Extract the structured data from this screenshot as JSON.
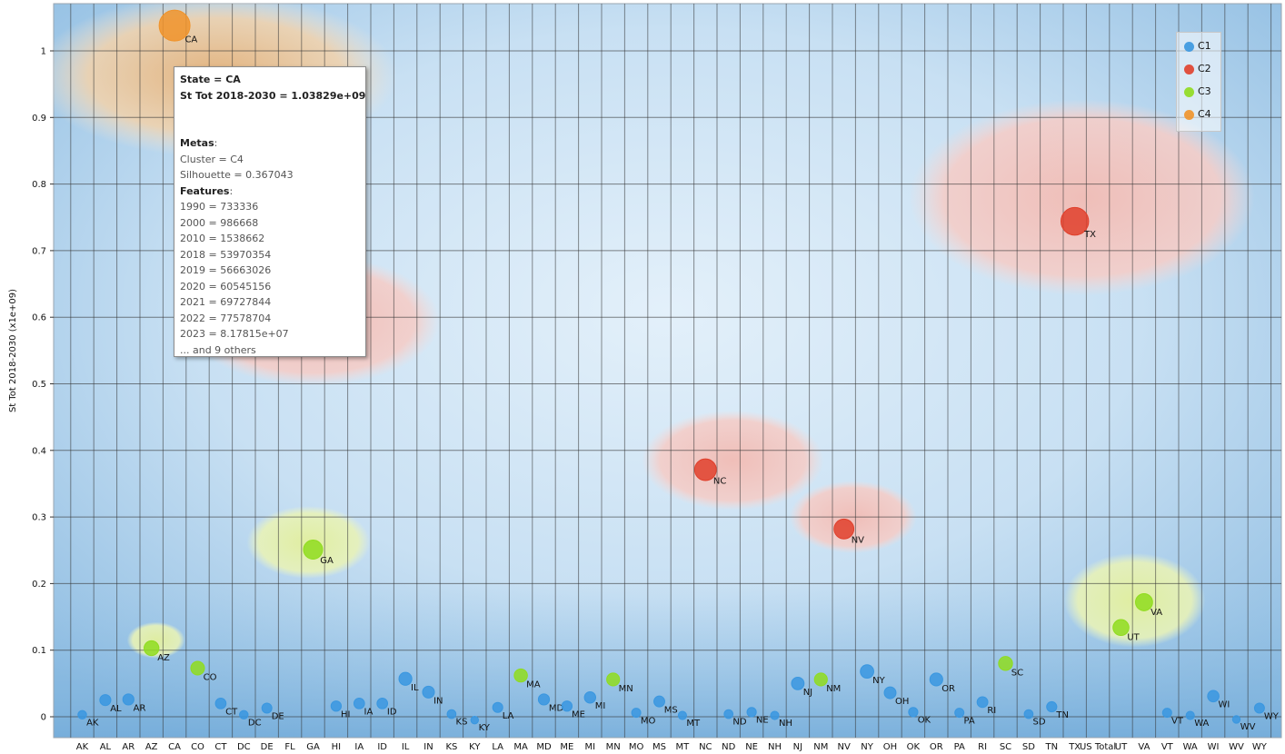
{
  "chart_data": {
    "type": "scatter",
    "ylabel": "St Tot 2018-2030 (x1e+09)",
    "ylim": [
      -0.03,
      1.07
    ],
    "yticks": [
      "0",
      "0.1",
      "0.2",
      "0.3",
      "0.4",
      "0.5",
      "0.6",
      "0.7",
      "0.8",
      "0.9",
      "1"
    ],
    "categories": [
      "AK",
      "AL",
      "AR",
      "AZ",
      "CA",
      "CO",
      "CT",
      "DC",
      "DE",
      "FL",
      "GA",
      "HI",
      "IA",
      "ID",
      "IL",
      "IN",
      "KS",
      "KY",
      "LA",
      "MA",
      "MD",
      "ME",
      "MI",
      "MN",
      "MO",
      "MS",
      "MT",
      "NC",
      "ND",
      "NE",
      "NH",
      "NJ",
      "NM",
      "NV",
      "NY",
      "OH",
      "OK",
      "OR",
      "PA",
      "RI",
      "SC",
      "SD",
      "TN",
      "TX",
      "US Total",
      "UT",
      "VA",
      "VT",
      "WA",
      "WI",
      "WV",
      "WY"
    ],
    "tick_labels": [
      "AK",
      "AL",
      "AR",
      "AZ",
      "CA",
      "CO",
      "CT",
      "DC",
      "DE",
      "FL",
      "GA",
      "HI",
      "IA",
      "ID",
      "IL",
      "IN",
      "KS",
      "KY",
      "LA",
      "MA",
      "MD",
      "ME",
      "MI",
      "MN",
      "MO",
      "MS",
      "MT",
      "NC",
      "ND",
      "NE",
      "NH",
      "NJ",
      "NM",
      "NV",
      "NY",
      "OH",
      "OK",
      "OR",
      "PA",
      "RI",
      "SC",
      "SD",
      "TN",
      "TX",
      "US Total",
      "UT",
      "VA",
      "VT",
      "WA",
      "WI",
      "WV",
      "WY"
    ],
    "grid": true,
    "legend_position": "top-right",
    "clusters": [
      {
        "name": "C1",
        "color": "#3a97e0"
      },
      {
        "name": "C2",
        "color": "#e0402c"
      },
      {
        "name": "C3",
        "color": "#8fdc1e"
      },
      {
        "name": "C4",
        "color": "#f0932a"
      }
    ],
    "points": [
      {
        "label": "AK",
        "x": "AK",
        "y": 0.003,
        "cluster": "C1"
      },
      {
        "label": "AL",
        "x": "AL",
        "y": 0.025,
        "cluster": "C1"
      },
      {
        "label": "AR",
        "x": "AR",
        "y": 0.026,
        "cluster": "C1"
      },
      {
        "label": "AZ",
        "x": "AZ",
        "y": 0.103,
        "cluster": "C3"
      },
      {
        "label": "CA",
        "x": "CA",
        "y": 1.038,
        "cluster": "C4"
      },
      {
        "label": "CO",
        "x": "CO",
        "y": 0.073,
        "cluster": "C3"
      },
      {
        "label": "CT",
        "x": "CT",
        "y": 0.02,
        "cluster": "C1"
      },
      {
        "label": "DC",
        "x": "DC",
        "y": 0.003,
        "cluster": "C1"
      },
      {
        "label": "DE",
        "x": "DE",
        "y": 0.013,
        "cluster": "C1"
      },
      {
        "label": "GA",
        "x": "GA",
        "y": 0.251,
        "cluster": "C3"
      },
      {
        "label": "HI",
        "x": "HI",
        "y": 0.016,
        "cluster": "C1"
      },
      {
        "label": "IA",
        "x": "IA",
        "y": 0.02,
        "cluster": "C1"
      },
      {
        "label": "ID",
        "x": "ID",
        "y": 0.02,
        "cluster": "C1"
      },
      {
        "label": "IL",
        "x": "IL",
        "y": 0.057,
        "cluster": "C1"
      },
      {
        "label": "IN",
        "x": "IN",
        "y": 0.037,
        "cluster": "C1"
      },
      {
        "label": "KS",
        "x": "KS",
        "y": 0.004,
        "cluster": "C1"
      },
      {
        "label": "KY",
        "x": "KY",
        "y": -0.005,
        "cluster": "C1"
      },
      {
        "label": "LA",
        "x": "LA",
        "y": 0.014,
        "cluster": "C1"
      },
      {
        "label": "MA",
        "x": "MA",
        "y": 0.062,
        "cluster": "C3"
      },
      {
        "label": "MD",
        "x": "MD",
        "y": 0.026,
        "cluster": "C1"
      },
      {
        "label": "ME",
        "x": "ME",
        "y": 0.016,
        "cluster": "C1"
      },
      {
        "label": "MI",
        "x": "MI",
        "y": 0.029,
        "cluster": "C1"
      },
      {
        "label": "MN",
        "x": "MN",
        "y": 0.056,
        "cluster": "C3"
      },
      {
        "label": "MO",
        "x": "MO",
        "y": 0.006,
        "cluster": "C1"
      },
      {
        "label": "MS",
        "x": "MS",
        "y": 0.023,
        "cluster": "C1"
      },
      {
        "label": "MT",
        "x": "MT",
        "y": 0.002,
        "cluster": "C1"
      },
      {
        "label": "NC",
        "x": "NC",
        "y": 0.371,
        "cluster": "C2"
      },
      {
        "label": "ND",
        "x": "ND",
        "y": 0.004,
        "cluster": "C1"
      },
      {
        "label": "NE",
        "x": "NE",
        "y": 0.007,
        "cluster": "C1"
      },
      {
        "label": "NH",
        "x": "NH",
        "y": 0.002,
        "cluster": "C1"
      },
      {
        "label": "NJ",
        "x": "NJ",
        "y": 0.05,
        "cluster": "C1"
      },
      {
        "label": "NM",
        "x": "NM",
        "y": 0.056,
        "cluster": "C3"
      },
      {
        "label": "NV",
        "x": "NV",
        "y": 0.282,
        "cluster": "C2"
      },
      {
        "label": "NY",
        "x": "NY",
        "y": 0.068,
        "cluster": "C1"
      },
      {
        "label": "OH",
        "x": "OH",
        "y": 0.036,
        "cluster": "C1"
      },
      {
        "label": "OK",
        "x": "OK",
        "y": 0.007,
        "cluster": "C1"
      },
      {
        "label": "OR",
        "x": "OR",
        "y": 0.056,
        "cluster": "C1"
      },
      {
        "label": "PA",
        "x": "PA",
        "y": 0.006,
        "cluster": "C1"
      },
      {
        "label": "RI",
        "x": "RI",
        "y": 0.022,
        "cluster": "C1"
      },
      {
        "label": "SC",
        "x": "SC",
        "y": 0.08,
        "cluster": "C3"
      },
      {
        "label": "SD",
        "x": "SD",
        "y": 0.004,
        "cluster": "C1"
      },
      {
        "label": "TN",
        "x": "TN",
        "y": 0.015,
        "cluster": "C1"
      },
      {
        "label": "TX",
        "x": "TX",
        "y": 0.744,
        "cluster": "C2"
      },
      {
        "label": "UT",
        "x": "UT",
        "y": 0.134,
        "cluster": "C3"
      },
      {
        "label": "VA",
        "x": "VA",
        "y": 0.172,
        "cluster": "C3"
      },
      {
        "label": "VT",
        "x": "VT",
        "y": 0.006,
        "cluster": "C1"
      },
      {
        "label": "WA",
        "x": "WA",
        "y": 0.002,
        "cluster": "C1"
      },
      {
        "label": "WI",
        "x": "WI",
        "y": 0.031,
        "cluster": "C1"
      },
      {
        "label": "WV",
        "x": "WV",
        "y": -0.004,
        "cluster": "C1"
      },
      {
        "label": "WY",
        "x": "WY",
        "y": 0.013,
        "cluster": "C1"
      }
    ]
  },
  "legend": {
    "items": [
      {
        "label": "C1",
        "color": "#3a97e0"
      },
      {
        "label": "C2",
        "color": "#e0402c"
      },
      {
        "label": "C3",
        "color": "#8fdc1e"
      },
      {
        "label": "C4",
        "color": "#f0932a"
      }
    ]
  },
  "tooltip": {
    "state_line": "State = CA",
    "value_line": "St Tot 2018-2030 = 1.03829e+09",
    "metas_label": "Metas",
    "cluster_line": "Cluster = C4",
    "silhouette_line": "Silhouette = 0.367043",
    "features_label": "Features",
    "features": [
      "1990 = 733336",
      "2000 = 986668",
      "2010 = 1538662",
      "2018 = 53970354",
      "2019 = 56663026",
      "2020 = 60545156",
      "2021 = 69727844",
      "2022 = 77578704",
      "2023 = 8.17815e+07"
    ],
    "more_line": "... and 9 others"
  }
}
